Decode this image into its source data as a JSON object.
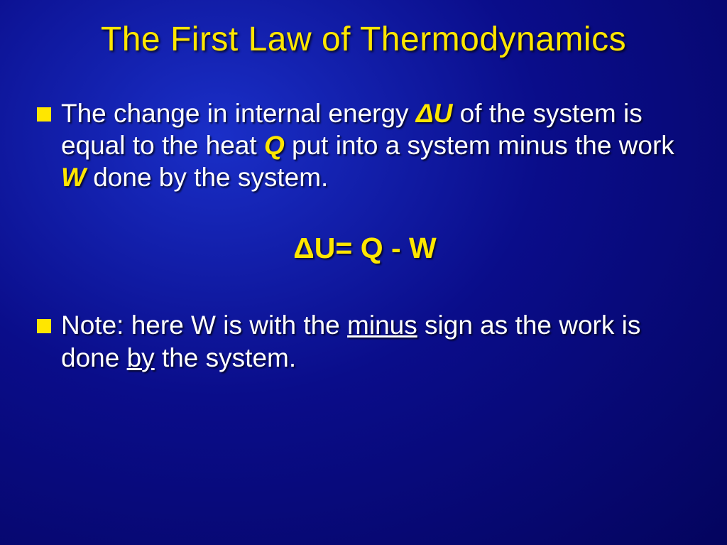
{
  "title": "The First Law of Thermodynamics",
  "bullet1": {
    "p1a": "The change in internal energy ",
    "p1b": "ΔU",
    "p1c": " of the system is equal to the heat ",
    "p1d": "Q",
    "p1e": " put into a system minus the work ",
    "p1f": "W",
    "p1g": " done by the system."
  },
  "formula": "ΔU= Q - W",
  "bullet2": {
    "p2a": "Note: here W is with the ",
    "p2b": "minus",
    "p2c": " sign as the work is done ",
    "p2d": "by",
    "p2e": " the system."
  }
}
